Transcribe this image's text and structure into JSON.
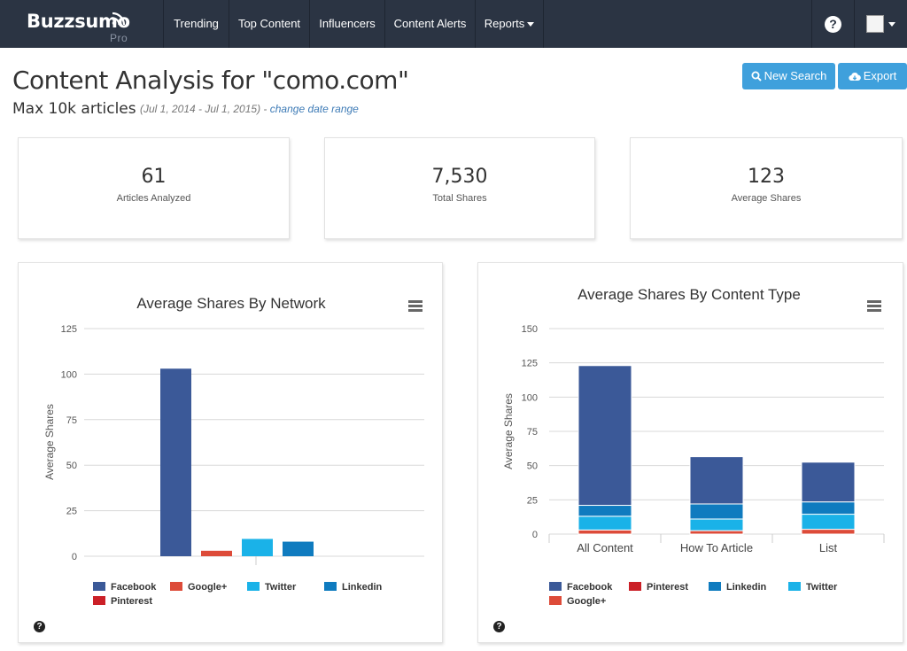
{
  "nav": {
    "logo": "Buzzsumo",
    "logo_sub": "Pro",
    "items": [
      "Trending",
      "Top Content",
      "Influencers",
      "Content Alerts",
      "Reports"
    ],
    "help": "?"
  },
  "header": {
    "title": "Content Analysis for \"como.com\"",
    "subtitle": "Max 10k articles",
    "date_range": "(Jul 1, 2014 - Jul 1, 2015) - ",
    "date_link": "change date range",
    "new_search": "New Search",
    "export": "Export"
  },
  "stats": [
    {
      "value": "61",
      "label": "Articles Analyzed"
    },
    {
      "value": "7,530",
      "label": "Total Shares"
    },
    {
      "value": "123",
      "label": "Average Shares"
    }
  ],
  "colors": {
    "facebook": "#3b5998",
    "googleplus": "#dd4b39",
    "twitter": "#1ab2e8",
    "linkedin": "#0f7bbf",
    "pinterest": "#cb2027",
    "accent": "#3fa0dc",
    "navbar": "#2b3443"
  },
  "chart_data": [
    {
      "type": "bar",
      "title": "Average Shares By Network",
      "xlabel": "",
      "ylabel": "Average Shares",
      "ylim": [
        0,
        125
      ],
      "yticks": [
        0,
        25,
        50,
        75,
        100,
        125
      ],
      "categories": [
        "Facebook",
        "Google+",
        "Twitter",
        "Linkedin",
        "Pinterest"
      ],
      "values": [
        103,
        3,
        9.5,
        8,
        0
      ],
      "colors": [
        "#3b5998",
        "#dd4b39",
        "#1ab2e8",
        "#0f7bbf",
        "#cb2027"
      ],
      "legend": [
        "Facebook",
        "Google+",
        "Twitter",
        "Linkedin",
        "Pinterest"
      ],
      "legend_placement": "bottom",
      "grid": true
    },
    {
      "type": "bar",
      "stacked": true,
      "title": "Average Shares By Content Type",
      "xlabel": "",
      "ylabel": "Average Shares",
      "ylim": [
        0,
        150
      ],
      "yticks": [
        0,
        25,
        50,
        75,
        100,
        125,
        150
      ],
      "categories": [
        "All Content",
        "How To Article",
        "List"
      ],
      "series": [
        {
          "name": "Google+",
          "color": "#dd4b39",
          "values": [
            3,
            2.5,
            3.5
          ]
        },
        {
          "name": "Twitter",
          "color": "#1ab2e8",
          "values": [
            10,
            8.5,
            11
          ]
        },
        {
          "name": "Linkedin",
          "color": "#0f7bbf",
          "values": [
            8,
            11,
            9
          ]
        },
        {
          "name": "Pinterest",
          "color": "#cb2027",
          "values": [
            0,
            0,
            0
          ]
        },
        {
          "name": "Facebook",
          "color": "#3b5998",
          "values": [
            102,
            34.5,
            29
          ]
        }
      ],
      "legend": [
        "Facebook",
        "Pinterest",
        "Linkedin",
        "Twitter",
        "Google+"
      ],
      "legend_placement": "bottom",
      "grid": true
    }
  ]
}
